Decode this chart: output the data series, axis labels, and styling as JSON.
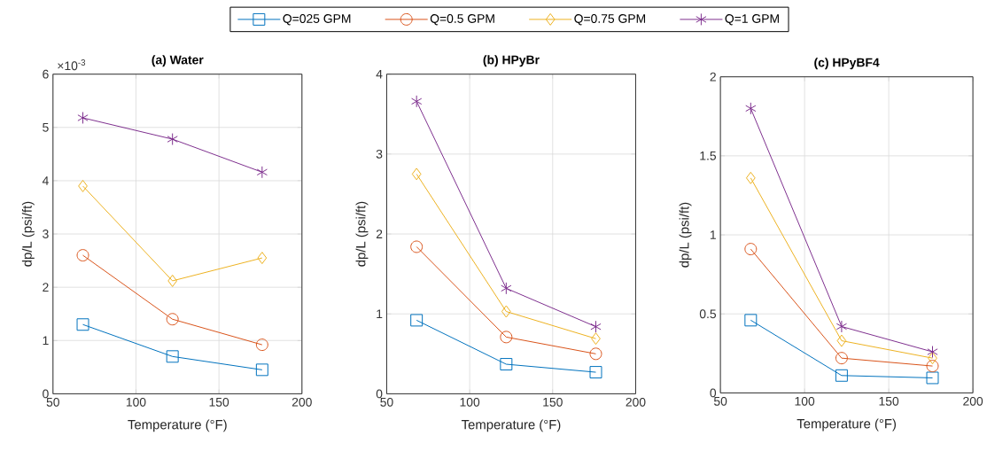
{
  "chart_data": [
    {
      "type": "line",
      "title": "(a) Water",
      "xlabel": "Temperature (°F)",
      "ylabel": "dp/L (psi/ft)",
      "x": [
        68,
        122,
        176
      ],
      "xlim": [
        50,
        200
      ],
      "xticks": [
        50,
        100,
        150,
        200
      ],
      "ylim": [
        0,
        6
      ],
      "yticks": [
        0,
        1,
        2,
        3,
        4,
        5,
        6
      ],
      "annotations": [
        "×10$^{-3}$"
      ],
      "grid": true,
      "legend": "top",
      "series": [
        {
          "name": "Q=025 GPM",
          "color": "#0072bd",
          "marker": "square",
          "values": [
            1.3,
            0.7,
            0.45
          ]
        },
        {
          "name": "Q=0.5 GPM",
          "color": "#d95319",
          "marker": "circle",
          "values": [
            2.6,
            1.4,
            0.92
          ]
        },
        {
          "name": "Q=0.75 GPM",
          "color": "#edb120",
          "marker": "diamond",
          "values": [
            3.9,
            2.12,
            2.55
          ]
        },
        {
          "name": "Q=1 GPM",
          "color": "#7e2f8e",
          "marker": "cross",
          "values": [
            5.18,
            4.78,
            4.16
          ]
        }
      ]
    },
    {
      "type": "line",
      "title": "(b) HPyBr",
      "xlabel": "Temperature (°F)",
      "ylabel": "dp/L (psi/ft)",
      "x": [
        68,
        122,
        176
      ],
      "xlim": [
        50,
        200
      ],
      "xticks": [
        50,
        100,
        150,
        200
      ],
      "ylim": [
        0,
        4
      ],
      "yticks": [
        0,
        1,
        2,
        3,
        4
      ],
      "grid": true,
      "series": [
        {
          "color": "#0072bd",
          "marker": "square",
          "values": [
            0.92,
            0.37,
            0.27
          ]
        },
        {
          "color": "#d95319",
          "marker": "circle",
          "values": [
            1.84,
            0.71,
            0.5
          ]
        },
        {
          "color": "#edb120",
          "marker": "diamond",
          "values": [
            2.75,
            1.03,
            0.69
          ]
        },
        {
          "color": "#7e2f8e",
          "marker": "cross",
          "values": [
            3.66,
            1.32,
            0.84
          ]
        }
      ]
    },
    {
      "type": "line",
      "title": "(c) HPyBF4",
      "xlabel": "Temperature (°F)",
      "ylabel": "dp/L (psi/ft)",
      "x": [
        68,
        122,
        176
      ],
      "xlim": [
        50,
        200
      ],
      "xticks": [
        50,
        100,
        150,
        200
      ],
      "ylim": [
        0,
        2
      ],
      "yticks": [
        0,
        0.5,
        1,
        1.5,
        2
      ],
      "grid": true,
      "series": [
        {
          "color": "#0072bd",
          "marker": "square",
          "values": [
            0.46,
            0.11,
            0.095
          ]
        },
        {
          "color": "#d95319",
          "marker": "circle",
          "values": [
            0.91,
            0.22,
            0.17
          ]
        },
        {
          "color": "#edb120",
          "marker": "diamond",
          "values": [
            1.36,
            0.33,
            0.22
          ]
        },
        {
          "color": "#7e2f8e",
          "marker": "cross",
          "values": [
            1.8,
            0.42,
            0.26
          ]
        }
      ]
    }
  ]
}
